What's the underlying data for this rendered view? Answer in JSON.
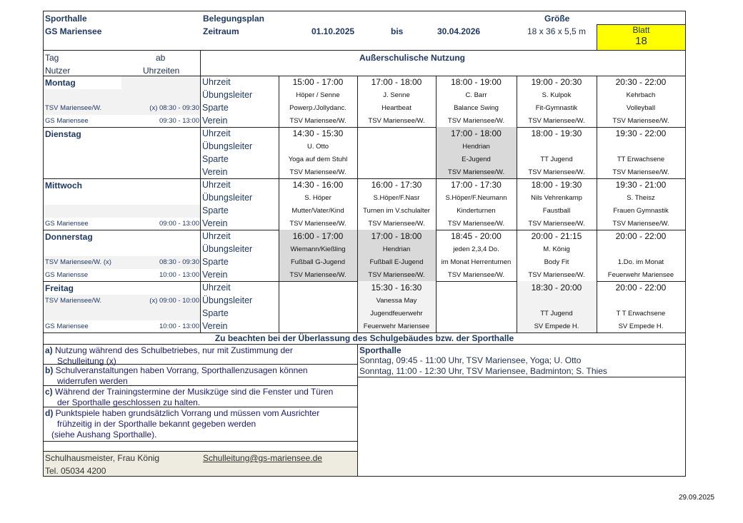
{
  "header": {
    "hall": "Sporthalle",
    "school": "GS Mariensee",
    "plan": "Belegungsplan",
    "period_label": "Zeitraum",
    "from": "01.10.2025",
    "to_label": "bis",
    "to": "30.04.2026",
    "size_label": "Größe",
    "size": "18 x 36 x 5,5 m",
    "sheet_label": "Blatt",
    "sheet": "18",
    "sheet_color": "#ffff00"
  },
  "colhead": {
    "tag": "Tag",
    "ab": "ab",
    "nutzer": "Nutzer",
    "uhrzeiten": "Uhrzeiten",
    "title": "Außerschulische Nutzung"
  },
  "labels": [
    "Uhrzeit",
    "Übungsleiter",
    "Sparte",
    "Verein"
  ],
  "days": [
    {
      "name": "Montag",
      "users": [
        [
          "",
          ""
        ],
        [
          "",
          ""
        ],
        [
          "TSV Mariensee/W.",
          "(x) 08:30  -  09:30"
        ],
        [
          "GS Mariensee",
          "09:30  -  13:00"
        ]
      ],
      "shade_left": [
        1,
        1,
        1,
        0
      ],
      "slots": [
        {
          "lines": [
            "15:00  -  17:00",
            "Höper / Senne",
            "Powerp./Jollydanc.",
            "TSV Mariensee/W."
          ],
          "shade": ""
        },
        {
          "lines": [
            "17:00  -  18:00",
            "J. Senne",
            "Heartbeat",
            "TSV Mariensee/W."
          ],
          "shade": ""
        },
        {
          "lines": [
            "18:00  -  19:00",
            "C. Barr",
            "Balance Swing",
            "TSV Mariensee/W."
          ],
          "shade": ""
        },
        {
          "lines": [
            "19:00  -  20:30",
            "S. Kulpok",
            "Fit-Gymnastik",
            "TSV Mariensee/W."
          ],
          "shade": ""
        },
        {
          "lines": [
            "20:30  -  22:00",
            "Kehrbach",
            "Volleyball",
            "TSV Mariensee/W."
          ],
          "shade": ""
        }
      ]
    },
    {
      "name": "Dienstag",
      "users": [
        [
          "",
          ""
        ],
        [
          "",
          ""
        ],
        [
          "",
          ""
        ],
        [
          "",
          ""
        ]
      ],
      "shade_left": [
        0,
        0,
        0,
        0
      ],
      "slots": [
        {
          "lines": [
            "14:30 - 15:30",
            "U. Otto",
            "Yoga auf dem Stuhl",
            "TSV Mariensee/W."
          ],
          "shade": ""
        },
        {
          "lines": [
            "",
            "",
            "",
            ""
          ],
          "shade": ""
        },
        {
          "lines": [
            "17:00  -  18:00",
            "Hendrian",
            "E-Jugend",
            "TSV Mariensee/W."
          ],
          "shade": "#d9d9d9"
        },
        {
          "lines": [
            "18:00  -  19:30",
            "",
            "TT Jugend",
            "TSV Mariensee/W."
          ],
          "shade": ""
        },
        {
          "lines": [
            "19:30  -  22:00",
            "",
            "TT Erwachsene",
            "TSV Mariensee/W."
          ],
          "shade": ""
        }
      ]
    },
    {
      "name": "Mittwoch",
      "users": [
        [
          "",
          ""
        ],
        [
          "",
          ""
        ],
        [
          "",
          ""
        ],
        [
          "GS Mariensee",
          "09:00  -  13:00"
        ]
      ],
      "shade_left": [
        0,
        0,
        1,
        0
      ],
      "slots": [
        {
          "lines": [
            "14:30  -  16:00",
            "S. Höper",
            "Mutter/Vater/Kind",
            "TSV Mariensee/W."
          ],
          "shade": ""
        },
        {
          "lines": [
            "16:00  -  17:30",
            "S.Höper/F.Nasr",
            "Turnen im V.schulalter",
            "TSV Mariensee/W."
          ],
          "shade": ""
        },
        {
          "lines": [
            "17:00  -  17:30",
            "S.Höper/F.Neumann",
            "Kinderturnen",
            "TSV Mariensee/W."
          ],
          "shade": ""
        },
        {
          "lines": [
            "18:00  -  19:30",
            "Nils Vehrenkamp",
            "Faustball",
            "TSV Mariensee/W."
          ],
          "shade": ""
        },
        {
          "lines": [
            "19:30  -  21:00",
            "S. Theisz",
            "Frauen Gymnastik",
            "TSV Mariensee/W."
          ],
          "shade": ""
        }
      ]
    },
    {
      "name": "Donnerstag",
      "users": [
        [
          "",
          ""
        ],
        [
          "",
          ""
        ],
        [
          "TSV Mariensee/W. (x)",
          "08:30  -  09:30"
        ],
        [
          "GS Mariensse",
          "10:00  -  13:00"
        ]
      ],
      "shade_left": [
        0,
        0,
        1,
        0
      ],
      "slots": [
        {
          "lines": [
            "16:00  -  17:00",
            "Wiemann/Kießling",
            "Fußball G-Jugend",
            "TSV Mariensee/W."
          ],
          "shade": "#d9d9d9"
        },
        {
          "lines": [
            "17:00 -  18:00",
            "Hendrian",
            "Fußball E-Jugend",
            "TSV Mariensee/W."
          ],
          "shade": "#d9d9d9"
        },
        {
          "lines": [
            "18:45 - 20:00",
            "jeden 2,3,4 Do.",
            "im Monat Herrenturnen",
            "TSV Mariensee/W."
          ],
          "shade": ""
        },
        {
          "lines": [
            "20:00  -  21:15",
            "M. König",
            "Body Fit",
            "TSV Mariensee/W."
          ],
          "shade": ""
        },
        {
          "lines": [
            "20:00  -  22:00",
            "",
            "1.Do. im Monat",
            "Feuerwehr Mariensee"
          ],
          "shade": ""
        }
      ]
    },
    {
      "name": "Freitag",
      "users": [
        [
          "",
          ""
        ],
        [
          "TSV Mariensee/W.",
          "(x) 09:00  -  10:00"
        ],
        [
          "",
          ""
        ],
        [
          "GS Mariensee",
          "10:00  -  13:00"
        ]
      ],
      "shade_left": [
        0,
        1,
        1,
        0
      ],
      "slots": [
        {
          "lines": [
            "",
            "",
            "",
            ""
          ],
          "shade": ""
        },
        {
          "lines": [
            "15:30  -  16:30",
            "Vanessa May",
            "Jugendfeuerwehr",
            "Feuerwehr Mariensee"
          ],
          "shade": "#f2f2f2"
        },
        {
          "lines": [
            "",
            "",
            "",
            ""
          ],
          "shade": ""
        },
        {
          "lines": [
            "18:30 - 20:00",
            "",
            "TT Jugend",
            "SV Empede H."
          ],
          "shade": "#f2f2f2"
        },
        {
          "lines": [
            "20:00  -  22:00",
            "",
            "T T Erwachsene",
            "SV Empede H."
          ],
          "shade": ""
        }
      ]
    }
  ],
  "notes": {
    "heading": "Zu beachten bei der Überlassung des Schulgebäudes bzw. der Sporthalle",
    "items": [
      {
        "key": "a)",
        "lines": [
          "Nutzung während des Schulbetriebes, nur mit Zustimmung der",
          "Schulleitung (x)"
        ]
      },
      {
        "key": "b)",
        "lines": [
          "Schulveranstaltungen haben Vorrang, Sporthallenzusagen können",
          "widerrufen werden"
        ]
      },
      {
        "key": "c)",
        "lines": [
          "Während der Trainingstermine der Musikzüge sind die Fenster und Türen",
          "der Sporthalle geschlossen zu halten."
        ]
      },
      {
        "key": "d)",
        "lines": [
          "Punktspiele haben grundsätzlich Vorrang und müssen vom Ausrichter",
          "frühzeitig in der Sporthalle bekannt gegeben werden",
          "(siehe Aushang Sporthalle)."
        ]
      }
    ],
    "contact": "Schulhausmeister, Frau König",
    "email": "Schulleitung@gs-mariensee.de",
    "phone": "Tel. 05034 4200"
  },
  "sunday": {
    "title": "Sporthalle",
    "lines": [
      "Sonntag, 09:45  -  11:00 Uhr, TSV Mariensee, Yoga; U. Otto",
      "Sonntag, 11:00  -  12:30 Uhr, TSV Mariensee, Badminton; S. Thies"
    ]
  },
  "footer_date": "29.09.2025"
}
